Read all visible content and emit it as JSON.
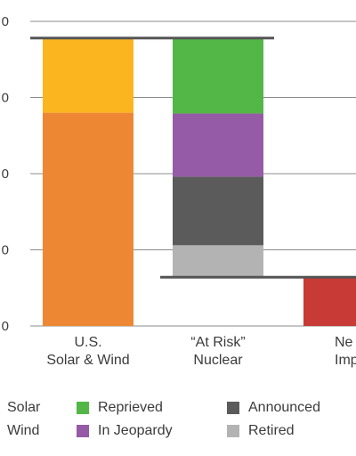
{
  "chart_data": {
    "type": "bar",
    "categories": [
      [
        "U.S.",
        "Solar & Wind"
      ],
      [
        "“At Risk”",
        "Nuclear"
      ],
      [
        "Ne",
        "Impa"
      ]
    ],
    "y_tick_labels": [
      "0",
      "0",
      "0",
      "0",
      "0"
    ],
    "ylim": [
      0,
      4
    ],
    "stacks": [
      {
        "category_index": 0,
        "base": 0,
        "segments": [
          {
            "name": "Wind",
            "value": 2.8,
            "color": "#ee8734"
          },
          {
            "name": "Solar",
            "value": 0.98,
            "color": "#fbb51f"
          }
        ]
      },
      {
        "category_index": 1,
        "base": 0.64,
        "segments": [
          {
            "name": "Retired",
            "value": 0.42,
            "color": "#b3b3b3"
          },
          {
            "name": "Announced",
            "value": 0.9,
            "color": "#5b5b5b"
          },
          {
            "name": "In Jeopardy",
            "value": 0.83,
            "color": "#955ba6"
          },
          {
            "name": "Reprieved",
            "value": 0.98,
            "color": "#53b748"
          }
        ]
      },
      {
        "category_index": 2,
        "base": 0,
        "segments": [
          {
            "name": "",
            "value": 0.64,
            "color": "#c73a35"
          }
        ]
      }
    ],
    "reference_lines": [
      {
        "value": 3.78,
        "from_category": 0,
        "to_category": 1
      },
      {
        "value": 0.64,
        "from_category": 1,
        "to_category": 2
      }
    ],
    "legend": [
      {
        "label": "Solar",
        "color": "#fbb51f"
      },
      {
        "label": "Wind",
        "color": "#ee8734"
      },
      {
        "label": "Reprieved",
        "color": "#53b748"
      },
      {
        "label": "In Jeopardy",
        "color": "#955ba6"
      },
      {
        "label": "Announced",
        "color": "#5b5b5b"
      },
      {
        "label": "Retired",
        "color": "#b3b3b3"
      }
    ],
    "axis_color": "#8c8c8c",
    "reference_line_color": "#555555"
  }
}
